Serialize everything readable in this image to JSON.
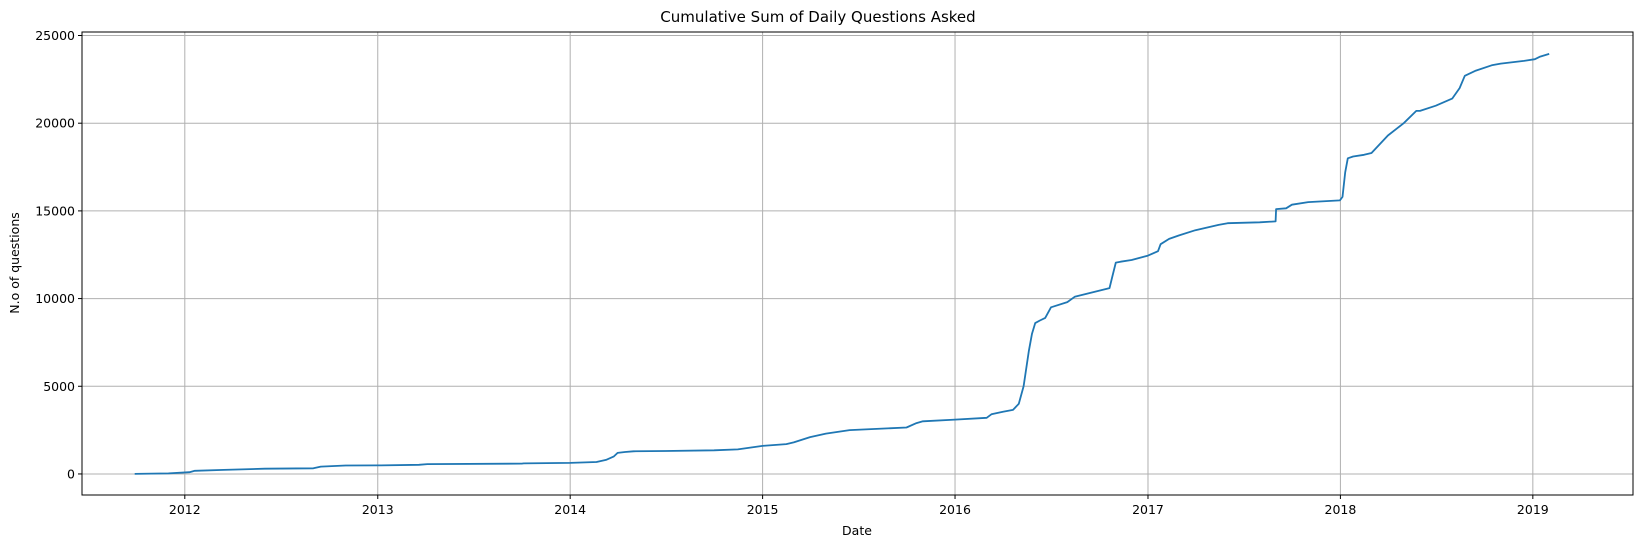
{
  "chart_data": {
    "type": "line",
    "title": "Cumulative Sum of Daily Questions Asked",
    "xlabel": "Date",
    "ylabel": "N.o of questions",
    "xlim": [
      "2011-06-20",
      "2019-07-10"
    ],
    "ylim": [
      -1200,
      25200
    ],
    "xticks": [
      {
        "date": "2012-01-01",
        "label": "2012"
      },
      {
        "date": "2013-01-01",
        "label": "2013"
      },
      {
        "date": "2014-01-01",
        "label": "2014"
      },
      {
        "date": "2015-01-01",
        "label": "2015"
      },
      {
        "date": "2016-01-01",
        "label": "2016"
      },
      {
        "date": "2017-01-01",
        "label": "2017"
      },
      {
        "date": "2018-01-01",
        "label": "2018"
      },
      {
        "date": "2019-01-01",
        "label": "2019"
      }
    ],
    "yticks": [
      {
        "value": 0,
        "label": "0"
      },
      {
        "value": 5000,
        "label": "5000"
      },
      {
        "value": 10000,
        "label": "10000"
      },
      {
        "value": 15000,
        "label": "15000"
      },
      {
        "value": 20000,
        "label": "20000"
      },
      {
        "value": 25000,
        "label": "25000"
      }
    ],
    "grid": true,
    "series": [
      {
        "color": "#1f77b4",
        "x": [
          "2011-09-28",
          "2011-12-01",
          "2012-01-10",
          "2012-01-20",
          "2012-03-15",
          "2012-06-01",
          "2012-09-01",
          "2012-09-15",
          "2012-11-01",
          "2013-01-01",
          "2013-03-20",
          "2013-04-05",
          "2013-10-01",
          "2013-10-05",
          "2014-01-01",
          "2014-02-20",
          "2014-03-10",
          "2014-03-25",
          "2014-04-01",
          "2014-04-15",
          "2014-05-01",
          "2014-07-01",
          "2014-10-01",
          "2014-11-15",
          "2015-01-01",
          "2015-02-15",
          "2015-03-01",
          "2015-04-01",
          "2015-05-01",
          "2015-06-15",
          "2015-10-01",
          "2015-10-20",
          "2015-11-01",
          "2016-01-01",
          "2016-03-01",
          "2016-03-10",
          "2016-04-01",
          "2016-04-20",
          "2016-05-01",
          "2016-05-10",
          "2016-05-20",
          "2016-05-26",
          "2016-06-01",
          "2016-06-10",
          "2016-06-20",
          "2016-07-01",
          "2016-08-01",
          "2016-08-15",
          "2016-10-20",
          "2016-10-25",
          "2016-11-01",
          "2016-11-10",
          "2016-12-01",
          "2017-01-01",
          "2017-01-20",
          "2017-01-25",
          "2017-02-10",
          "2017-03-01",
          "2017-04-01",
          "2017-05-15",
          "2017-06-01",
          "2017-08-01",
          "2017-08-31",
          "2017-09-01",
          "2017-09-20",
          "2017-10-01",
          "2017-11-01",
          "2017-12-31",
          "2018-01-05",
          "2018-01-10",
          "2018-01-15",
          "2018-01-25",
          "2018-02-15",
          "2018-03-01",
          "2018-04-01",
          "2018-05-01",
          "2018-05-25",
          "2018-06-01",
          "2018-07-01",
          "2018-08-01",
          "2018-08-15",
          "2018-08-25",
          "2018-09-01",
          "2018-09-15",
          "2018-10-15",
          "2018-11-01",
          "2018-12-15",
          "2019-01-05",
          "2019-01-15",
          "2019-02-01"
        ],
        "y": [
          5,
          30,
          100,
          180,
          230,
          300,
          320,
          420,
          480,
          490,
          520,
          560,
          590,
          600,
          630,
          680,
          800,
          1000,
          1200,
          1250,
          1290,
          1310,
          1350,
          1400,
          1600,
          1700,
          1800,
          2100,
          2300,
          2500,
          2650,
          2900,
          3000,
          3100,
          3200,
          3400,
          3550,
          3650,
          4000,
          5000,
          7000,
          8000,
          8600,
          8750,
          8900,
          9500,
          9800,
          10100,
          10600,
          11200,
          12050,
          12100,
          12200,
          12450,
          12700,
          13100,
          13400,
          13600,
          13900,
          14200,
          14300,
          14350,
          14400,
          15100,
          15150,
          15350,
          15500,
          15600,
          15800,
          17200,
          18000,
          18100,
          18200,
          18300,
          19300,
          20000,
          20700,
          20700,
          21000,
          21400,
          22000,
          22700,
          22800,
          23000,
          23300,
          23400,
          23550,
          23650,
          23800,
          23950
        ]
      }
    ]
  }
}
